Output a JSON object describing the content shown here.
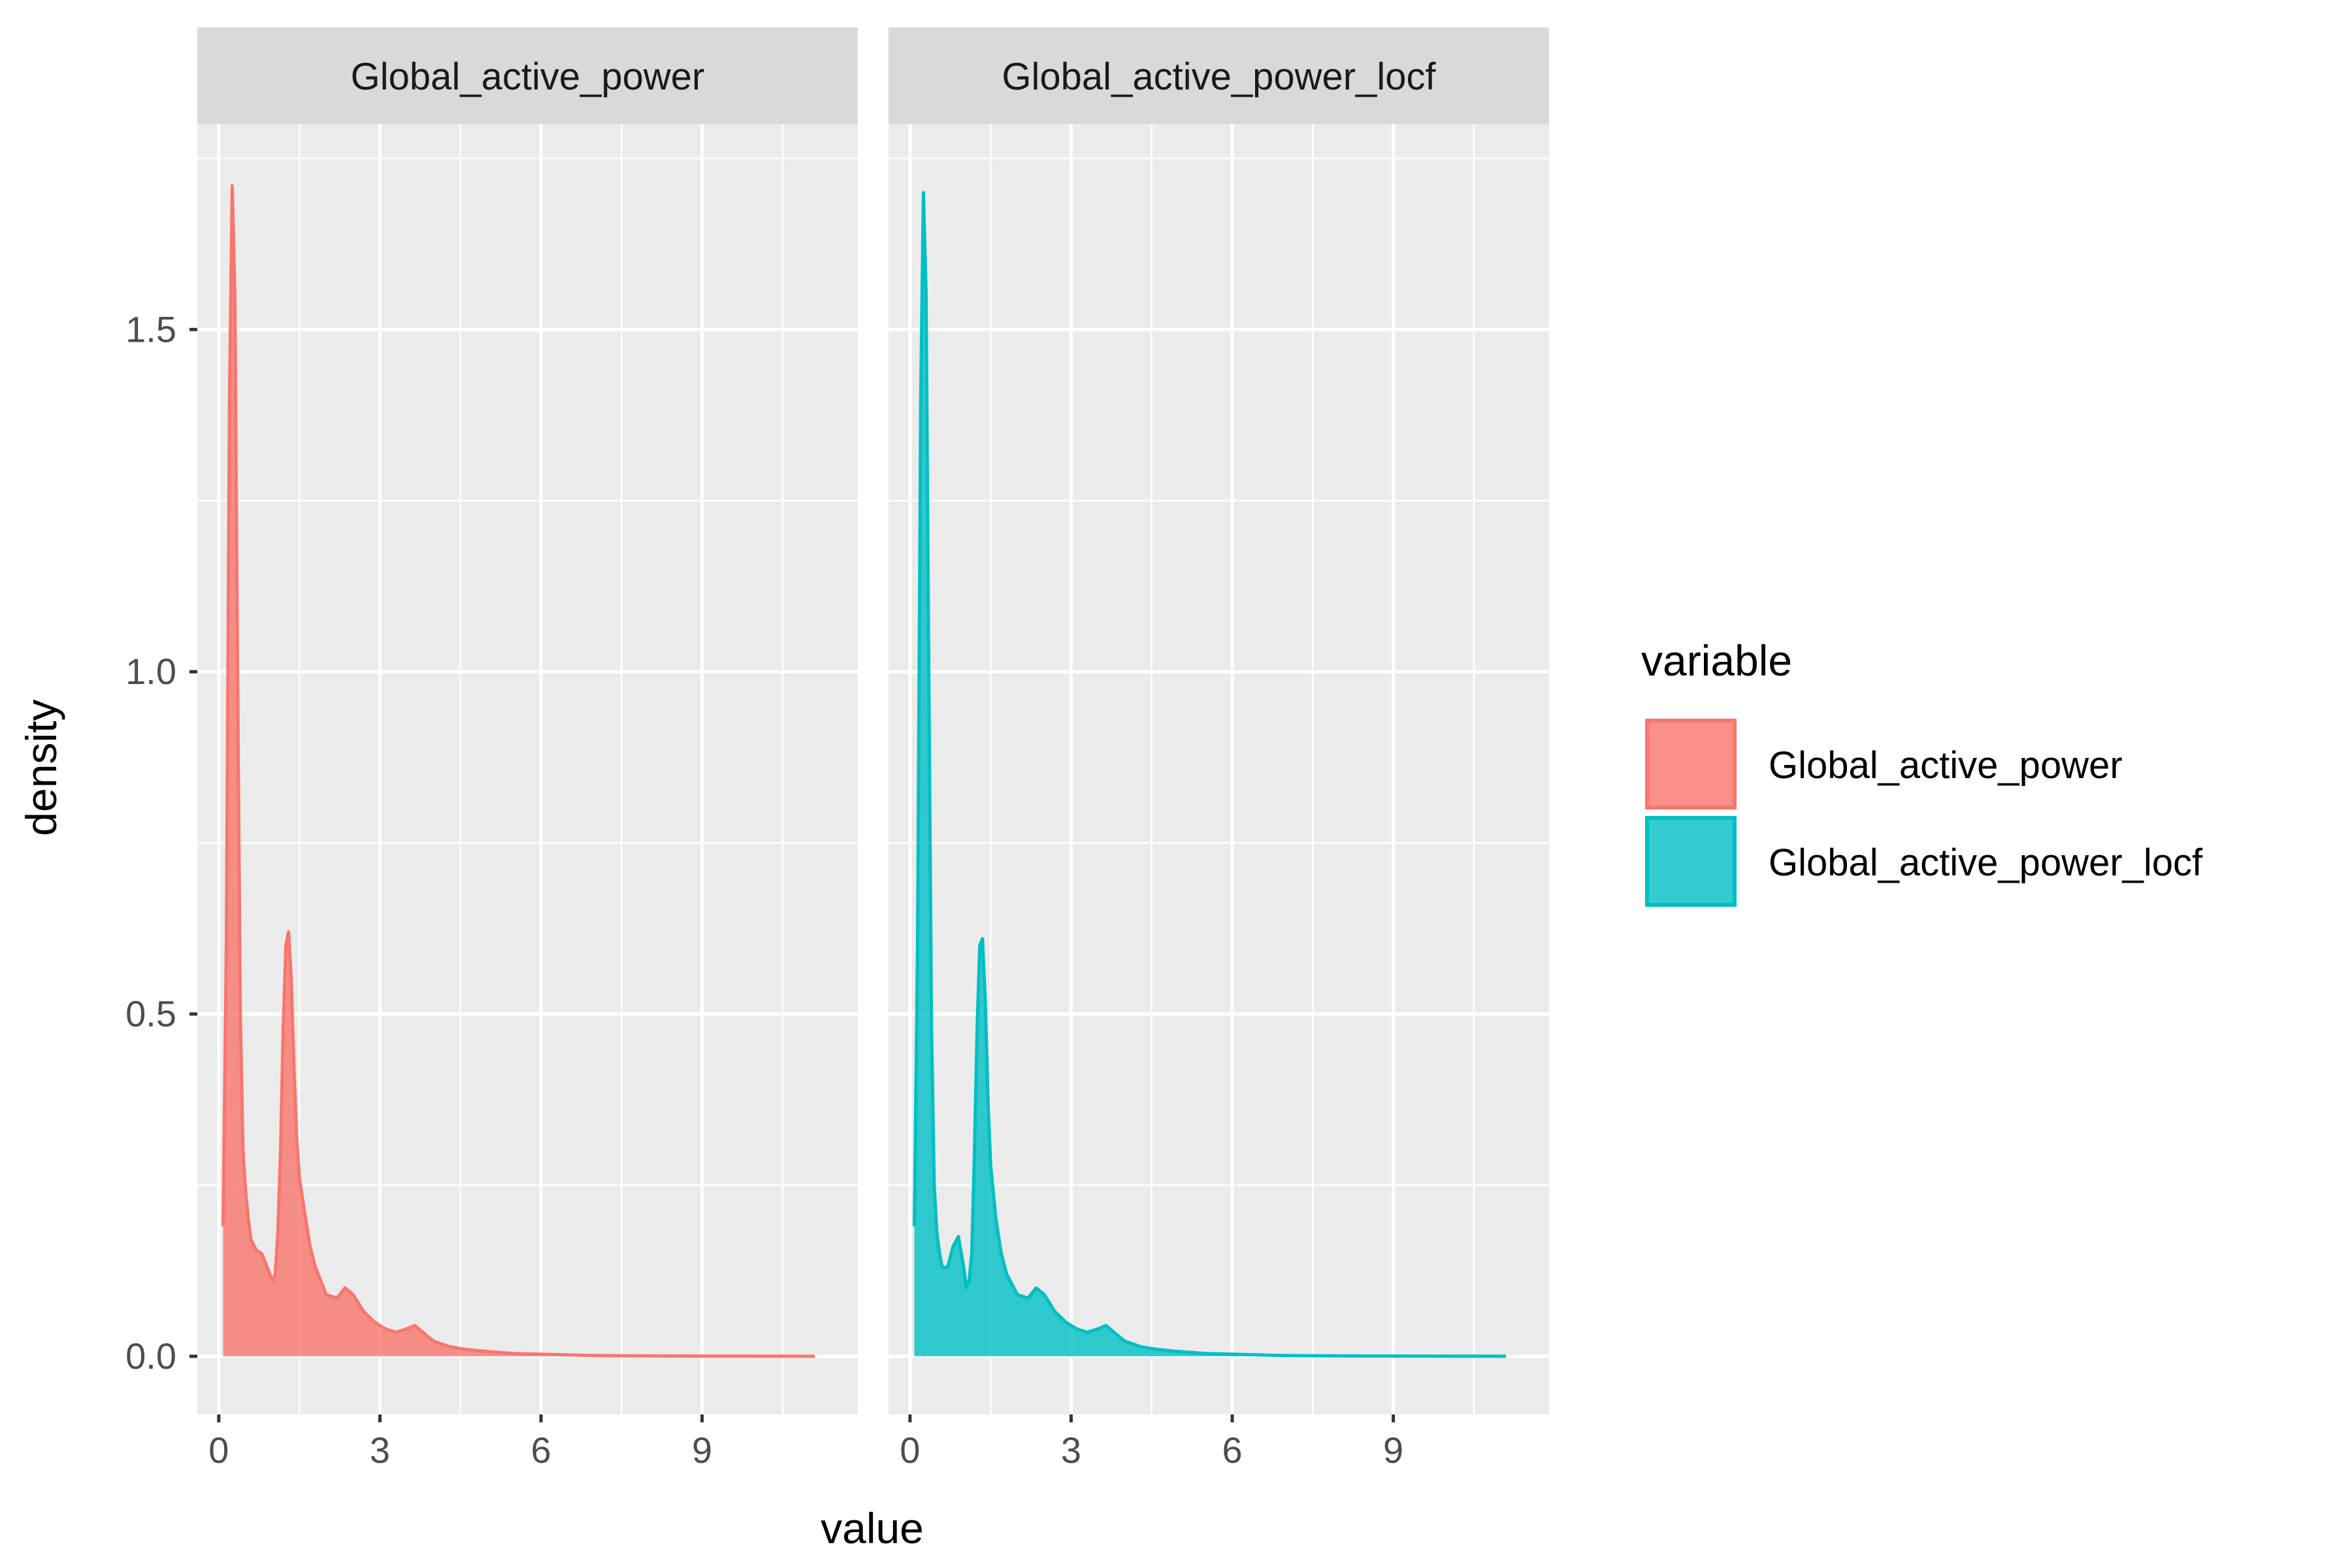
{
  "chart_data": {
    "type": "area",
    "xlabel": "value",
    "ylabel": "density",
    "xlim": [
      -0.4,
      11.9
    ],
    "ylim": [
      -0.085,
      1.8
    ],
    "x_ticks": [
      0,
      3,
      6,
      9
    ],
    "y_ticks": [
      0.0,
      0.5,
      1.0,
      1.5
    ],
    "x_tick_labels": [
      "0",
      "3",
      "6",
      "9"
    ],
    "y_tick_labels": [
      "0.0",
      "0.5",
      "1.0",
      "1.5"
    ],
    "grid": true,
    "facets": [
      "Global_active_power",
      "Global_active_power_locf"
    ],
    "legend": {
      "title": "variable",
      "placement": "right",
      "entries": [
        "Global_active_power",
        "Global_active_power_locf"
      ]
    },
    "colors": {
      "Global_active_power": "#F8766D",
      "Global_active_power_locf": "#00BFC4",
      "panel_bg": "#EBEBEB",
      "strip_bg": "#D9D9D9",
      "grid": "#FFFFFF"
    },
    "series": [
      {
        "name": "Global_active_power",
        "x": [
          0.08,
          0.14,
          0.2,
          0.25,
          0.3,
          0.35,
          0.4,
          0.45,
          0.5,
          0.55,
          0.6,
          0.7,
          0.8,
          0.9,
          1.0,
          1.05,
          1.1,
          1.15,
          1.2,
          1.25,
          1.3,
          1.35,
          1.4,
          1.45,
          1.5,
          1.6,
          1.7,
          1.8,
          2.0,
          2.2,
          2.35,
          2.5,
          2.7,
          2.9,
          3.1,
          3.3,
          3.5,
          3.65,
          3.8,
          4.0,
          4.3,
          4.6,
          5.0,
          5.5,
          6.0,
          7.0,
          8.0,
          9.0,
          10.0,
          11.1
        ],
        "y": [
          0.19,
          0.6,
          1.4,
          1.71,
          1.55,
          1.0,
          0.5,
          0.3,
          0.24,
          0.2,
          0.17,
          0.155,
          0.15,
          0.13,
          0.11,
          0.12,
          0.18,
          0.3,
          0.48,
          0.6,
          0.62,
          0.55,
          0.42,
          0.32,
          0.26,
          0.21,
          0.16,
          0.13,
          0.09,
          0.085,
          0.1,
          0.09,
          0.065,
          0.05,
          0.04,
          0.035,
          0.04,
          0.045,
          0.035,
          0.022,
          0.014,
          0.01,
          0.007,
          0.004,
          0.003,
          0.001,
          0.0005,
          0.0003,
          0.0002,
          0.0
        ]
      },
      {
        "name": "Global_active_power_locf",
        "x": [
          0.08,
          0.14,
          0.2,
          0.25,
          0.3,
          0.35,
          0.4,
          0.45,
          0.5,
          0.55,
          0.6,
          0.7,
          0.8,
          0.9,
          1.0,
          1.05,
          1.1,
          1.15,
          1.2,
          1.25,
          1.3,
          1.35,
          1.4,
          1.45,
          1.5,
          1.6,
          1.7,
          1.8,
          2.0,
          2.2,
          2.35,
          2.5,
          2.7,
          2.9,
          3.1,
          3.3,
          3.5,
          3.65,
          3.8,
          4.0,
          4.3,
          4.6,
          5.0,
          5.5,
          6.0,
          7.0,
          8.0,
          9.0,
          10.0,
          11.1
        ],
        "y": [
          0.19,
          0.6,
          1.4,
          1.7,
          1.55,
          1.0,
          0.48,
          0.25,
          0.18,
          0.15,
          0.13,
          0.13,
          0.16,
          0.175,
          0.13,
          0.1,
          0.11,
          0.15,
          0.3,
          0.48,
          0.6,
          0.61,
          0.52,
          0.38,
          0.28,
          0.2,
          0.15,
          0.12,
          0.09,
          0.085,
          0.1,
          0.09,
          0.065,
          0.05,
          0.04,
          0.035,
          0.04,
          0.045,
          0.035,
          0.022,
          0.014,
          0.01,
          0.007,
          0.004,
          0.003,
          0.001,
          0.0005,
          0.0003,
          0.0002,
          0.0
        ]
      }
    ]
  }
}
